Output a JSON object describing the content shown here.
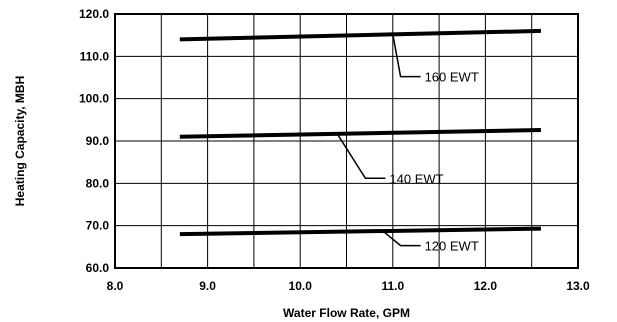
{
  "chart_data": {
    "type": "line",
    "xlabel": "Water Flow Rate, GPM",
    "ylabel": "Heating Capacity, MBH",
    "xlim": [
      8.0,
      13.0
    ],
    "ylim": [
      60.0,
      120.0
    ],
    "x_ticks": [
      "8.0",
      "9.0",
      "10.0",
      "11.0",
      "12.0",
      "13.0"
    ],
    "y_ticks": [
      "60.0",
      "70.0",
      "80.0",
      "90.0",
      "100.0",
      "110.0",
      "120.0"
    ],
    "x_gridlines": [
      8.5,
      9.0,
      9.5,
      10.0,
      10.5,
      11.0,
      11.5,
      12.0,
      12.5
    ],
    "y_gridlines": [
      70,
      80,
      90,
      100,
      110
    ],
    "grid": true,
    "legend": "inline leader labels",
    "series": [
      {
        "name": "160 EWT",
        "x": [
          8.7,
          12.6
        ],
        "y": [
          114.0,
          116.0
        ],
        "label_pointer": [
          11.0,
          115.2
        ],
        "label_at": [
          11.3,
          105.2
        ]
      },
      {
        "name": "140 EWT",
        "x": [
          8.7,
          12.6
        ],
        "y": [
          91.0,
          92.6
        ],
        "label_pointer": [
          10.4,
          91.7
        ],
        "label_at": [
          10.92,
          81.2
        ]
      },
      {
        "name": "120 EWT",
        "x": [
          8.7,
          12.6
        ],
        "y": [
          68.0,
          69.3
        ],
        "label_pointer": [
          10.9,
          68.6
        ],
        "label_at": [
          11.3,
          65.3
        ]
      }
    ]
  }
}
